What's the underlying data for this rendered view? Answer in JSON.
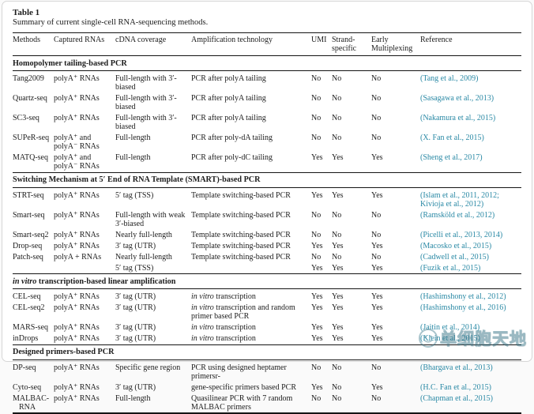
{
  "header": {
    "label": "Table 1",
    "caption": "Summary of current single-cell RNA-sequencing methods."
  },
  "colors": {
    "reference": "#2a89a5"
  },
  "table": {
    "columns": [
      "Methods",
      "Captured RNAs",
      "cDNA coverage",
      "Amplification technology",
      "UMI",
      "Strand-specific",
      "Early Multiplexing",
      "Reference"
    ],
    "sections": [
      {
        "title_italic": "",
        "title_rest": "Homopolymer tailing-based PCR",
        "rows": [
          {
            "method": "Tang2009",
            "captured": "polyA⁺ RNAs",
            "coverage": "Full-length with 3′-biased",
            "amp_italic": "",
            "amp_rest": "PCR after polyA tailing",
            "umi": "No",
            "strand": "No",
            "early": "No",
            "ref": "(Tang et al., 2009)"
          },
          {
            "method": "Quartz-seq",
            "captured": "polyA⁺ RNAs",
            "coverage": "Full-length with 3′-biased",
            "amp_italic": "",
            "amp_rest": "PCR after polyA tailing",
            "umi": "No",
            "strand": "No",
            "early": "No",
            "ref": "(Sasagawa et al., 2013)"
          },
          {
            "method": "SC3-seq",
            "captured": "polyA⁺ RNAs",
            "coverage": "Full-length with 3′-biased",
            "amp_italic": "",
            "amp_rest": "PCR after polyA tailing",
            "umi": "No",
            "strand": "No",
            "early": "No",
            "ref": "(Nakamura et al., 2015)"
          },
          {
            "method": "SUPeR-seq",
            "captured": "polyA⁺ and polyA⁻ RNAs",
            "coverage": "Full-length",
            "amp_italic": "",
            "amp_rest": "PCR after poly-dA tailing",
            "umi": "No",
            "strand": "No",
            "early": "No",
            "ref": "(X. Fan et al., 2015)"
          },
          {
            "method": "MATQ-seq",
            "captured": "polyA⁺ and polyA⁻ RNAs",
            "coverage": "Full-length",
            "amp_italic": "",
            "amp_rest": "PCR after poly-dC tailing",
            "umi": "Yes",
            "strand": "Yes",
            "early": "Yes",
            "ref": "(Sheng et al., 2017)"
          }
        ]
      },
      {
        "title_italic": "",
        "title_rest": "Switching Mechanism at 5′ End of RNA Template (SMART)-based PCR",
        "rows": [
          {
            "method": "STRT-seq",
            "captured": "polyA⁺ RNAs",
            "coverage": "5′ tag (TSS)",
            "amp_italic": "",
            "amp_rest": "Template switching-based PCR",
            "umi": "Yes",
            "strand": "Yes",
            "early": "Yes",
            "ref": "(Islam et al., 2011, 2012; Kivioja et al., 2012)"
          },
          {
            "method": "Smart-seq",
            "captured": "polyA⁺ RNAs",
            "coverage": "Full-length with weak 3′-biased",
            "amp_italic": "",
            "amp_rest": "Template switching-based PCR",
            "umi": "No",
            "strand": "No",
            "early": "No",
            "ref": "(Ramsköld et al., 2012)"
          },
          {
            "method": "Smart-seq2",
            "captured": "polyA⁺ RNAs",
            "coverage": "Nearly full-length",
            "amp_italic": "",
            "amp_rest": "Template switching-based PCR",
            "umi": "No",
            "strand": "No",
            "early": "No",
            "ref": "(Picelli et al., 2013, 2014)"
          },
          {
            "method": "Drop-seq",
            "captured": "polyA⁺ RNAs",
            "coverage": "3′ tag (UTR)",
            "amp_italic": "",
            "amp_rest": "Template switching-based PCR",
            "umi": "Yes",
            "strand": "Yes",
            "early": "Yes",
            "ref": "(Macosko et al., 2015)"
          },
          {
            "method": "Patch-seq",
            "captured": "polyA + RNAs",
            "coverage": "Nearly full-length",
            "amp_italic": "",
            "amp_rest": "Template switching-based PCR",
            "umi": "No",
            "strand": "No",
            "early": "No",
            "ref": "(Cadwell et al., 2015)"
          },
          {
            "cont": true,
            "method": "",
            "captured": "",
            "coverage": "5′ tag (TSS)",
            "amp_italic": "",
            "amp_rest": "",
            "umi": "Yes",
            "strand": "Yes",
            "early": "Yes",
            "ref": "(Fuzik et al., 2015)"
          }
        ]
      },
      {
        "title_italic": "in vitro",
        "title_rest": " transcription-based linear amplification",
        "rows": [
          {
            "method": "CEL-seq",
            "captured": "polyA⁺ RNAs",
            "coverage": "3′ tag (UTR)",
            "amp_italic": "in vitro",
            "amp_rest": " transcription",
            "umi": "Yes",
            "strand": "Yes",
            "early": "Yes",
            "ref": "(Hashimshony et al., 2012)"
          },
          {
            "method": "CEL-seq2",
            "captured": "polyA⁺ RNAs",
            "coverage": "3′ tag (UTR)",
            "amp_italic": "in vitro",
            "amp_rest": " transcription and random primer based PCR",
            "umi": "Yes",
            "strand": "Yes",
            "early": "Yes",
            "ref": "(Hashimshony et al., 2016)"
          },
          {
            "method": "MARS-seq",
            "captured": "polyA⁺ RNAs",
            "coverage": "3′ tag (UTR)",
            "amp_italic": "in vitro",
            "amp_rest": " transcription",
            "umi": "Yes",
            "strand": "Yes",
            "early": "Yes",
            "ref": "(Jaitin et al., 2014)"
          },
          {
            "method": "inDrops",
            "captured": "polyA⁺ RNAs",
            "coverage": "3′ tag (UTR)",
            "amp_italic": "in vitro",
            "amp_rest": " transcription",
            "umi": "Yes",
            "strand": "Yes",
            "early": "Yes",
            "ref": "(Klein et al., 2015)"
          }
        ]
      },
      {
        "title_italic": "",
        "title_rest": "Designed primers-based PCR",
        "rows": [
          {
            "method": "DP-seq",
            "captured": "polyA⁺ RNAs",
            "coverage": "Specific gene region",
            "amp_italic": "",
            "amp_rest": "PCR using designed heptamer primersr-",
            "umi": "No",
            "strand": "No",
            "early": "No",
            "ref": "(Bhargava et al., 2013)"
          },
          {
            "method": "Cyto-seq",
            "captured": "polyA⁺ RNAs",
            "coverage": "3′ tag (UTR)",
            "amp_italic": "",
            "amp_rest": "gene-specific primers based PCR",
            "umi": "Yes",
            "strand": "No",
            "early": "Yes",
            "ref": "(H.C. Fan et al., 2015)"
          },
          {
            "method": "MALBAC-RNA",
            "captured": "polyA⁺ RNAs",
            "coverage": "Full-length",
            "amp_italic": "",
            "amp_rest": "Quasilinear PCR with 7 random MALBAC primers",
            "umi": "No",
            "strand": "No",
            "early": "No",
            "ref": "(Chapman et al., 2015)"
          }
        ]
      }
    ]
  },
  "watermark": {
    "text": "单细胞天地"
  }
}
